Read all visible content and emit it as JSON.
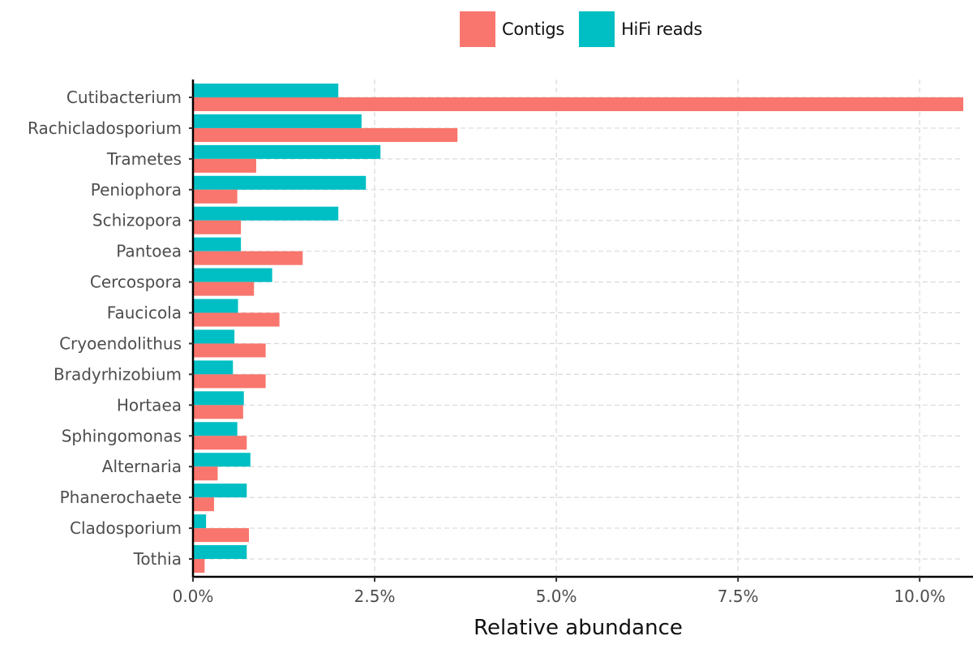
{
  "chart_data": {
    "type": "bar",
    "orientation": "horizontal",
    "title": "",
    "xlabel": "Relative abundance",
    "ylabel": "",
    "xlim": [
      0,
      10.6
    ],
    "x_ticks": [
      0,
      2.5,
      5.0,
      7.5,
      10.0
    ],
    "x_tick_labels": [
      "0.0%",
      "2.5%",
      "5.0%",
      "7.5%",
      "10.0%"
    ],
    "grid": "dashed major gridlines",
    "legend_position": "top",
    "categories": [
      "Cutibacterium",
      "Rachicladosporium",
      "Trametes",
      "Peniophora",
      "Schizopora",
      "Pantoea",
      "Cercospora",
      "Faucicola",
      "Cryoendolithus",
      "Bradyrhizobium",
      "Hortaea",
      "Sphingomonas",
      "Alternaria",
      "Phanerochaete",
      "Cladosporium",
      "Tothia"
    ],
    "series": [
      {
        "name": "Contigs",
        "color": "#F8766D",
        "values": [
          10.6,
          3.64,
          0.87,
          0.61,
          0.66,
          1.51,
          0.84,
          1.19,
          1.0,
          1.0,
          0.69,
          0.74,
          0.34,
          0.29,
          0.77,
          0.16
        ]
      },
      {
        "name": "HiFi reads",
        "color": "#00BFC4",
        "values": [
          2.0,
          2.32,
          2.58,
          2.38,
          2.0,
          0.66,
          1.09,
          0.62,
          0.57,
          0.55,
          0.7,
          0.61,
          0.79,
          0.74,
          0.18,
          0.74
        ]
      }
    ]
  },
  "legend": {
    "items": [
      {
        "label": "Contigs",
        "color": "#F8766D"
      },
      {
        "label": "HiFi reads",
        "color": "#00BFC4"
      }
    ]
  }
}
